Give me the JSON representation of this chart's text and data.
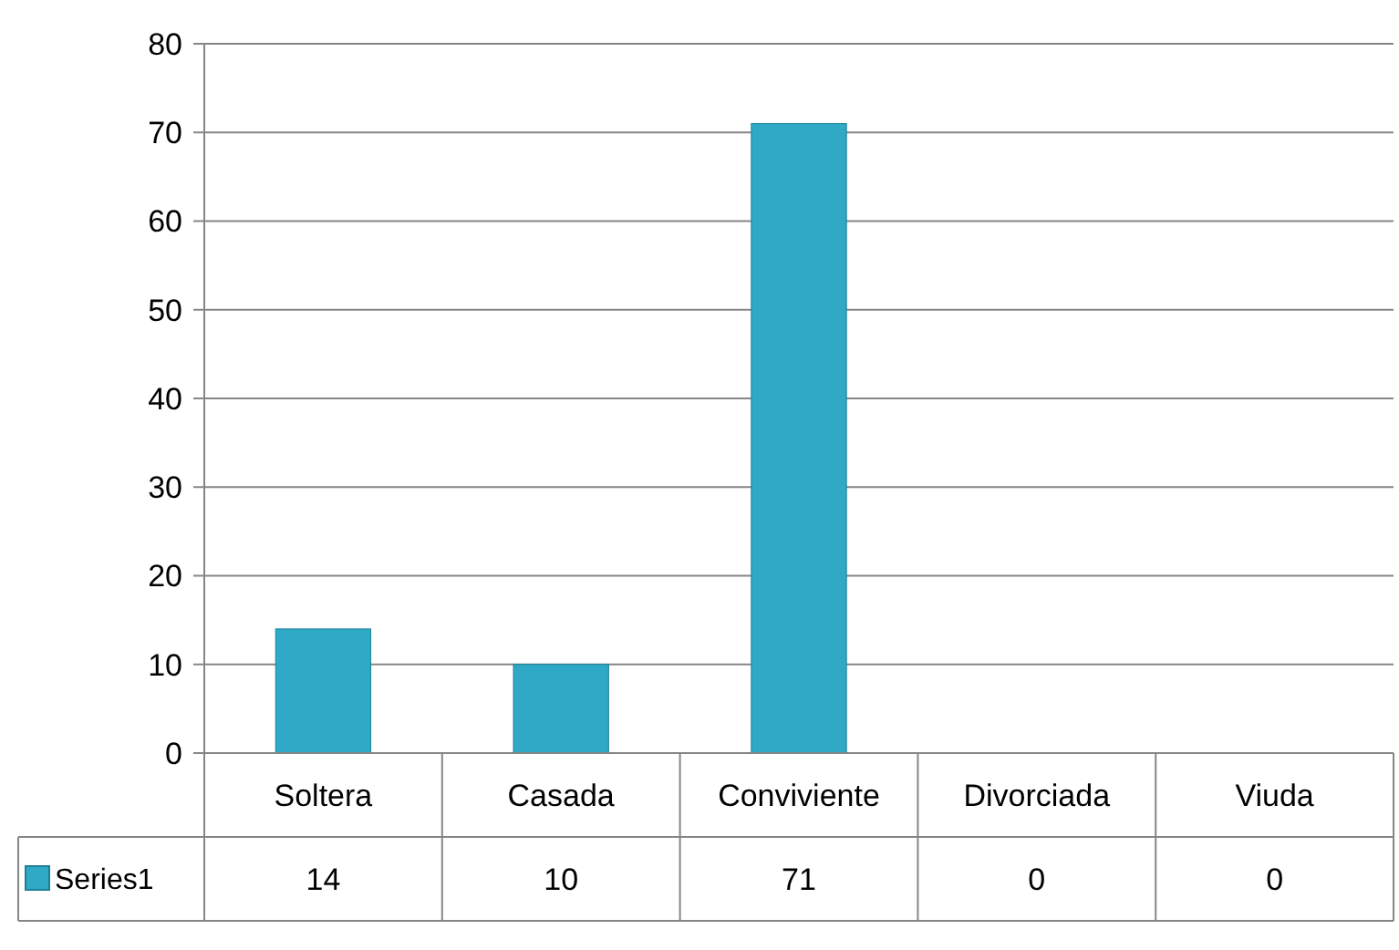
{
  "chart_data": {
    "type": "bar",
    "categories": [
      "Soltera",
      "Casada",
      "Conviviente",
      "Divorciada",
      "Viuda"
    ],
    "series": [
      {
        "name": "Series1",
        "color": "#2fa9c6",
        "values": [
          14,
          10,
          71,
          0,
          0
        ]
      }
    ],
    "ylim": [
      0,
      80
    ],
    "yticks": [
      0,
      10,
      20,
      30,
      40,
      50,
      60,
      70,
      80
    ],
    "grid": "y",
    "data_labels": true,
    "legend": "bottom"
  }
}
